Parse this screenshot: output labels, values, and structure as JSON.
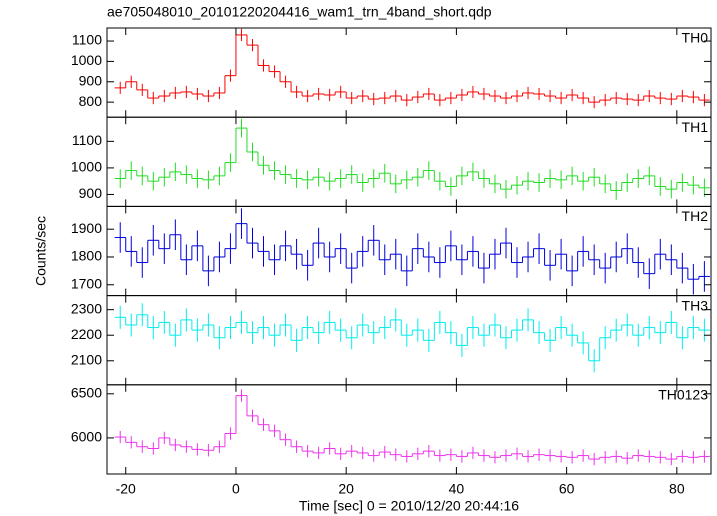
{
  "chart_data": [
    {
      "type": "line",
      "title": "ae705048010_20101220204416_wam1_trn_4band_short.qdp",
      "label": "TH0",
      "color": "#ff0000",
      "x": [
        -21,
        -19,
        -17,
        -15,
        -13,
        -11,
        -9,
        -7,
        -5,
        -3,
        -1,
        1,
        3,
        5,
        7,
        9,
        11,
        13,
        15,
        17,
        19,
        21,
        23,
        25,
        27,
        29,
        31,
        33,
        35,
        37,
        39,
        41,
        43,
        45,
        47,
        49,
        51,
        53,
        55,
        57,
        59,
        61,
        63,
        65,
        67,
        69,
        71,
        73,
        75,
        77,
        79,
        81,
        83,
        85
      ],
      "values": [
        870,
        900,
        860,
        820,
        830,
        845,
        850,
        840,
        830,
        845,
        930,
        1130,
        1080,
        980,
        950,
        900,
        850,
        830,
        840,
        835,
        850,
        820,
        830,
        815,
        820,
        830,
        810,
        825,
        840,
        810,
        820,
        835,
        850,
        840,
        830,
        820,
        830,
        845,
        840,
        830,
        820,
        835,
        820,
        800,
        810,
        820,
        815,
        810,
        830,
        820,
        815,
        830,
        825,
        810
      ],
      "error": 30,
      "xlim": [
        -23.4,
        86.2
      ],
      "xticks": [
        -20,
        0,
        20,
        40,
        60,
        80
      ],
      "ylim": [
        726,
        1164
      ],
      "yticks": [
        800,
        900,
        1000,
        1100
      ]
    },
    {
      "type": "line",
      "label": "TH1",
      "color": "#22dd22",
      "x": [
        -21,
        -19,
        -17,
        -15,
        -13,
        -11,
        -9,
        -7,
        -5,
        -3,
        -1,
        1,
        3,
        5,
        7,
        9,
        11,
        13,
        15,
        17,
        19,
        21,
        23,
        25,
        27,
        29,
        31,
        33,
        35,
        37,
        39,
        41,
        43,
        45,
        47,
        49,
        51,
        53,
        55,
        57,
        59,
        61,
        63,
        65,
        67,
        69,
        71,
        73,
        75,
        77,
        79,
        81,
        83,
        85
      ],
      "values": [
        960,
        990,
        970,
        950,
        965,
        985,
        975,
        960,
        955,
        970,
        1020,
        1150,
        1060,
        1010,
        990,
        975,
        960,
        955,
        965,
        950,
        960,
        975,
        945,
        960,
        980,
        940,
        955,
        965,
        990,
        950,
        930,
        970,
        985,
        960,
        940,
        920,
        935,
        950,
        945,
        960,
        955,
        970,
        950,
        965,
        940,
        915,
        945,
        960,
        970,
        930,
        920,
        945,
        935,
        925
      ],
      "error": 35,
      "xlim": [
        -23.4,
        86.2
      ],
      "xticks": [
        -20,
        0,
        20,
        40,
        60,
        80
      ],
      "ylim": [
        855,
        1191
      ],
      "yticks": [
        900,
        1000,
        1100
      ]
    },
    {
      "type": "line",
      "label": "TH2",
      "ylabel": "Counts/sec",
      "color": "#0000dd",
      "x": [
        -21,
        -19,
        -17,
        -15,
        -13,
        -11,
        -9,
        -7,
        -5,
        -3,
        -1,
        1,
        3,
        5,
        7,
        9,
        11,
        13,
        15,
        17,
        19,
        21,
        23,
        25,
        27,
        29,
        31,
        33,
        35,
        37,
        39,
        41,
        43,
        45,
        47,
        49,
        51,
        53,
        55,
        57,
        59,
        61,
        63,
        65,
        67,
        69,
        71,
        73,
        75,
        77,
        79,
        81,
        83,
        85
      ],
      "values": [
        1870,
        1820,
        1780,
        1860,
        1830,
        1880,
        1790,
        1840,
        1750,
        1800,
        1830,
        1920,
        1850,
        1820,
        1790,
        1840,
        1810,
        1770,
        1850,
        1800,
        1830,
        1760,
        1820,
        1860,
        1790,
        1810,
        1750,
        1830,
        1800,
        1780,
        1840,
        1790,
        1820,
        1760,
        1810,
        1850,
        1780,
        1800,
        1830,
        1770,
        1810,
        1750,
        1820,
        1790,
        1760,
        1800,
        1830,
        1780,
        1740,
        1810,
        1790,
        1760,
        1720,
        1730
      ],
      "error": 55,
      "xlim": [
        -23.4,
        86.2
      ],
      "xticks": [
        -20,
        0,
        20,
        40,
        60,
        80
      ],
      "ylim": [
        1661,
        1982
      ],
      "yticks": [
        1700,
        1800,
        1900
      ]
    },
    {
      "type": "line",
      "label": "TH3",
      "color": "#00eeee",
      "x": [
        -21,
        -19,
        -17,
        -15,
        -13,
        -11,
        -9,
        -7,
        -5,
        -3,
        -1,
        1,
        3,
        5,
        7,
        9,
        11,
        13,
        15,
        17,
        19,
        21,
        23,
        25,
        27,
        29,
        31,
        33,
        35,
        37,
        39,
        41,
        43,
        45,
        47,
        49,
        51,
        53,
        55,
        57,
        59,
        61,
        63,
        65,
        67,
        69,
        71,
        73,
        75,
        77,
        79,
        81,
        83,
        85
      ],
      "values": [
        2270,
        2240,
        2280,
        2230,
        2250,
        2200,
        2260,
        2220,
        2240,
        2190,
        2230,
        2250,
        2210,
        2230,
        2200,
        2240,
        2180,
        2230,
        2210,
        2250,
        2220,
        2190,
        2240,
        2210,
        2230,
        2260,
        2200,
        2220,
        2180,
        2250,
        2210,
        2160,
        2230,
        2200,
        2240,
        2190,
        2220,
        2260,
        2210,
        2180,
        2230,
        2200,
        2170,
        2100,
        2190,
        2220,
        2240,
        2200,
        2230,
        2210,
        2250,
        2190,
        2230,
        2220
      ],
      "error": 45,
      "xlim": [
        -23.4,
        86.2
      ],
      "xticks": [
        -20,
        0,
        20,
        40,
        60,
        80
      ],
      "ylim": [
        2006,
        2355
      ],
      "yticks": [
        2100,
        2200,
        2300
      ]
    },
    {
      "type": "line",
      "label": "TH0123",
      "xlabel": "Time [sec] 0 = 2010/12/20 20:44:16",
      "color": "#ee33ee",
      "x": [
        -21,
        -19,
        -17,
        -15,
        -13,
        -11,
        -9,
        -7,
        -5,
        -3,
        -1,
        1,
        3,
        5,
        7,
        9,
        11,
        13,
        15,
        17,
        19,
        21,
        23,
        25,
        27,
        29,
        31,
        33,
        35,
        37,
        39,
        41,
        43,
        45,
        47,
        49,
        51,
        53,
        55,
        57,
        59,
        61,
        63,
        65,
        67,
        69,
        71,
        73,
        75,
        77,
        79,
        81,
        83,
        85
      ],
      "values": [
        6010,
        5950,
        5900,
        5880,
        6000,
        5920,
        5900,
        5870,
        5860,
        5900,
        6050,
        6480,
        6250,
        6150,
        6080,
        5980,
        5900,
        5850,
        5830,
        5880,
        5820,
        5850,
        5830,
        5800,
        5840,
        5810,
        5790,
        5820,
        5850,
        5800,
        5810,
        5790,
        5830,
        5800,
        5780,
        5800,
        5820,
        5790,
        5810,
        5800,
        5790,
        5780,
        5800,
        5760,
        5780,
        5790,
        5770,
        5800,
        5790,
        5780,
        5760,
        5790,
        5780,
        5790
      ],
      "error": 70,
      "xlim": [
        -23.4,
        86.2
      ],
      "xticks": [
        -20,
        0,
        20,
        40,
        60,
        80
      ],
      "ylim": [
        5591,
        6602
      ],
      "yticks": [
        6000,
        6500
      ]
    }
  ]
}
